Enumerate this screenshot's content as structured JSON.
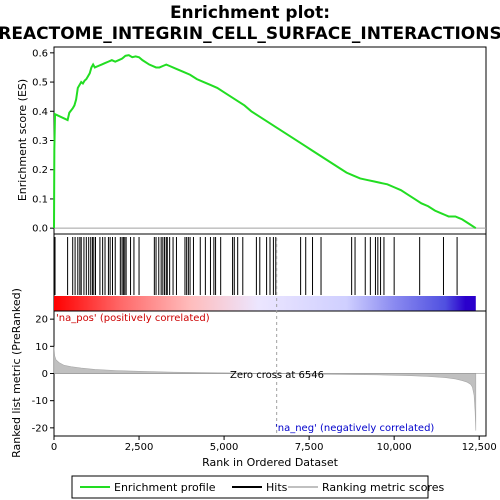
{
  "chart_data": {
    "type": "line",
    "title_line1": "Enrichment plot:",
    "title_line2": "REACTOME_INTEGRIN_CELL_SURFACE_INTERACTIONS",
    "top_panel": {
      "ylabel": "Enrichment score (ES)",
      "ylim": [
        -0.02,
        0.62
      ],
      "yticks": [
        "0.0",
        "0.1",
        "0.2",
        "0.3",
        "0.4",
        "0.5",
        "0.6"
      ],
      "ytick_values": [
        0.0,
        0.1,
        0.2,
        0.3,
        0.4,
        0.5,
        0.6
      ],
      "line_color": "#22dd22",
      "series": {
        "name": "Enrichment profile",
        "x": [
          0,
          10,
          30,
          400,
          450,
          550,
          600,
          650,
          700,
          750,
          800,
          850,
          900,
          950,
          1000,
          1050,
          1100,
          1150,
          1200,
          1300,
          1400,
          1500,
          1600,
          1700,
          1800,
          1900,
          2000,
          2050,
          2100,
          2200,
          2300,
          2400,
          2500,
          2600,
          2800,
          3000,
          3100,
          3200,
          3300,
          3400,
          3600,
          3800,
          4000,
          4200,
          4400,
          4600,
          4800,
          5000,
          5200,
          5400,
          5600,
          5800,
          6000,
          6200,
          6400,
          6600,
          6800,
          7000,
          7200,
          7400,
          7600,
          7800,
          8000,
          8200,
          8400,
          8600,
          8800,
          9000,
          9200,
          9400,
          9600,
          9800,
          10000,
          10200,
          10400,
          10600,
          10800,
          11000,
          11200,
          11400,
          11500,
          11600,
          11800,
          11900,
          12000,
          12200,
          12400
        ],
        "y": [
          0.0,
          0.27,
          0.39,
          0.37,
          0.395,
          0.41,
          0.42,
          0.44,
          0.48,
          0.49,
          0.5,
          0.495,
          0.505,
          0.51,
          0.52,
          0.53,
          0.55,
          0.56,
          0.55,
          0.555,
          0.56,
          0.565,
          0.57,
          0.575,
          0.57,
          0.575,
          0.58,
          0.585,
          0.59,
          0.592,
          0.585,
          0.588,
          0.585,
          0.575,
          0.56,
          0.55,
          0.55,
          0.555,
          0.56,
          0.555,
          0.545,
          0.535,
          0.525,
          0.51,
          0.5,
          0.49,
          0.48,
          0.465,
          0.45,
          0.435,
          0.42,
          0.4,
          0.385,
          0.37,
          0.355,
          0.34,
          0.325,
          0.31,
          0.295,
          0.28,
          0.265,
          0.25,
          0.235,
          0.22,
          0.205,
          0.19,
          0.18,
          0.17,
          0.165,
          0.16,
          0.155,
          0.15,
          0.14,
          0.13,
          0.115,
          0.1,
          0.085,
          0.075,
          0.06,
          0.05,
          0.045,
          0.04,
          0.04,
          0.035,
          0.03,
          0.015,
          0.0
        ]
      }
    },
    "hits_panel": {
      "hit_positions": [
        30,
        400,
        550,
        620,
        700,
        760,
        800,
        880,
        950,
        1020,
        1080,
        1130,
        1170,
        1220,
        1350,
        1430,
        1500,
        1600,
        1650,
        1720,
        1800,
        1950,
        2000,
        2040,
        2080,
        2120,
        2250,
        2350,
        2500,
        2950,
        3000,
        3080,
        3150,
        3200,
        3250,
        3300,
        3330,
        3400,
        3500,
        3600,
        3850,
        3900,
        3950,
        4000,
        4100,
        4300,
        4450,
        4600,
        4700,
        4750,
        4900,
        5250,
        5300,
        5400,
        5550,
        5950,
        6050,
        6250,
        6350,
        6450,
        6520,
        7250,
        7400,
        7600,
        7850,
        8750,
        8850,
        9150,
        9300,
        9450,
        9520,
        9600,
        9700,
        10000,
        10750,
        11450,
        11850
      ],
      "bar_gradient": [
        {
          "x": 0,
          "color": "#ff0000"
        },
        {
          "x": 2000,
          "color": "#ff6a6a"
        },
        {
          "x": 4000,
          "color": "#ffbcbc"
        },
        {
          "x": 6000,
          "color": "#ece6ff"
        },
        {
          "x": 8600,
          "color": "#cfcfff"
        },
        {
          "x": 10000,
          "color": "#8a8af0"
        },
        {
          "x": 11500,
          "color": "#5050e0"
        },
        {
          "x": 12100,
          "color": "#2a00cc"
        },
        {
          "x": 12400,
          "color": "#2a00cc"
        }
      ]
    },
    "metric_panel": {
      "ylabel": "Ranked list metric (PreRanked)",
      "ylim": [
        -23,
        23
      ],
      "yticks": [
        "20",
        "10",
        "0",
        "-10",
        "-20"
      ],
      "ytick_values": [
        20,
        10,
        0,
        -10,
        -20
      ],
      "fill_color": "#c0c0c0",
      "x": [
        0,
        20,
        60,
        150,
        300,
        500,
        800,
        1200,
        1800,
        2500,
        3500,
        4500,
        5500,
        6546,
        7500,
        8500,
        9500,
        10500,
        11000,
        11500,
        11800,
        12000,
        12150,
        12250,
        12300,
        12350,
        12380,
        12400
      ],
      "values": [
        10,
        6.5,
        5,
        4,
        3,
        2.5,
        2,
        1.5,
        1.1,
        0.8,
        0.5,
        0.3,
        0.15,
        0,
        -0.2,
        -0.35,
        -0.5,
        -0.8,
        -1.1,
        -1.5,
        -2,
        -2.6,
        -3.2,
        -4,
        -5,
        -8,
        -14,
        -21
      ],
      "zero_cross_label": "Zero cross at 6546",
      "zero_cross": 6546,
      "pos_label": "'na_pos' (positively correlated)",
      "neg_label": "'na_neg' (negatively correlated)"
    },
    "xlabel": "Rank in Ordered Dataset",
    "xlim": [
      0,
      12700
    ],
    "xticks": [
      "0",
      "2,500",
      "5,000",
      "7,500",
      "10,000",
      "12,500"
    ],
    "xtick_values": [
      0,
      2500,
      5000,
      7500,
      10000,
      12500
    ],
    "legend": [
      {
        "label": "Enrichment profile",
        "color": "#22dd22",
        "style": "line"
      },
      {
        "label": "Hits",
        "color": "#000000",
        "style": "line"
      },
      {
        "label": "Ranking metric scores",
        "color": "#c0c0c0",
        "style": "line"
      }
    ]
  }
}
